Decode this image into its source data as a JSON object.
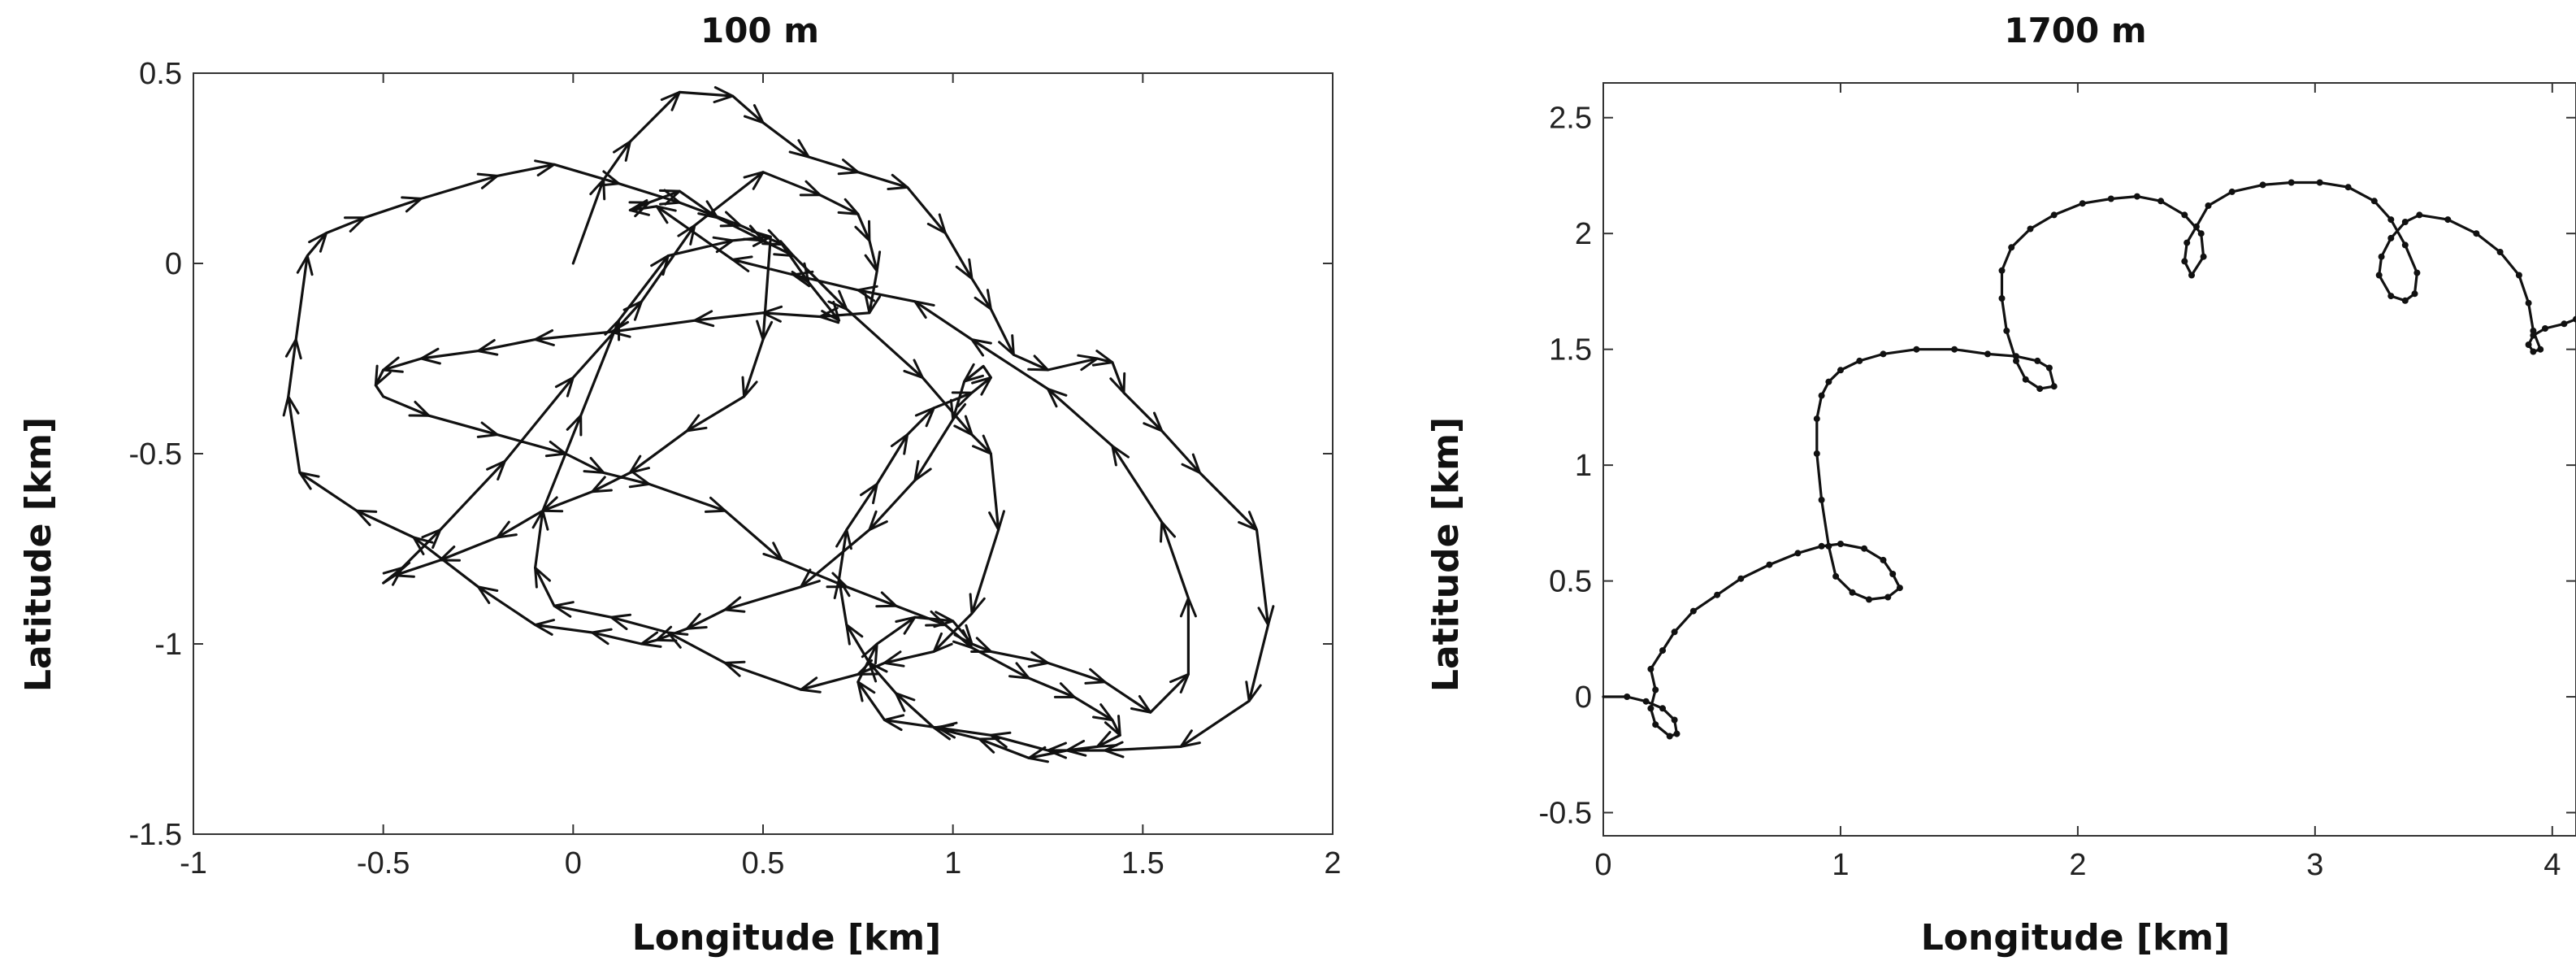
{
  "charts": [
    {
      "title": "100 m",
      "xlabel": "Longitude [km]",
      "ylabel": "Latitude [km]",
      "xticks": [
        "-1",
        "-0.5",
        "0",
        "0.5",
        "1",
        "1.5",
        "2"
      ],
      "yticks": [
        "0.5",
        "0",
        "-0.5",
        "-1",
        "-1.5"
      ]
    },
    {
      "title": "1700 m",
      "xlabel": "Longitude [km]",
      "ylabel": "Latitude [km]",
      "xticks": [
        "0",
        "1",
        "2",
        "3",
        "4"
      ],
      "yticks": [
        "2.5",
        "2",
        "1.5",
        "1",
        "0.5",
        "0",
        "-0.5"
      ]
    }
  ],
  "chart_data": [
    {
      "type": "line",
      "title": "100 m",
      "xlabel": "Longitude [km]",
      "ylabel": "Latitude [km]",
      "xlim": [
        -1,
        2
      ],
      "ylim": [
        -1.5,
        0.5
      ],
      "marker": "arrow",
      "series": [
        {
          "x": [
            0,
            0.08,
            0.15,
            0.28,
            0.42,
            0.5,
            0.62,
            0.75,
            0.88,
            0.98,
            1.05,
            1.1,
            1.16,
            1.25,
            1.38,
            1.42,
            1.45,
            1.55,
            1.65,
            1.8,
            1.83,
            1.78,
            1.6,
            1.4,
            1.25,
            1.1,
            0.96,
            0.82,
            0.75,
            0.8,
            0.9,
            1,
            1.05,
            1.1,
            1.25,
            1.4,
            1.52,
            1.62,
            1.62,
            1.55,
            1.42,
            1.25,
            1.05,
            0.9,
            0.75,
            0.58,
            0.42,
            0.22,
            0.15,
            0.2,
            0.28,
            0.38,
            0.5,
            0.58,
            0.72,
            0.92,
            1.05,
            1.1,
            1.12,
            1.05,
            0.95,
            0.82,
            0.75,
            0.6,
            0.4,
            0.25,
            0.1,
            -0.05,
            -0.1,
            -0.08,
            0.02,
            0.12,
            0.25,
            0.42,
            0.52,
            0.5,
            0.45,
            0.3,
            0.15,
            0.05,
            -0.08,
            -0.2,
            -0.35,
            -0.47,
            -0.5,
            -0.45,
            -0.35,
            -0.18,
            0,
            0.18,
            0.32,
            0.5,
            0.65,
            0.75,
            0.78,
            0.8,
            0.78,
            0.65,
            0.5,
            0.32,
            0.1,
            -0.1,
            -0.25,
            -0.4,
            -0.5,
            -0.52,
            -0.5,
            -0.38,
            -0.2,
            -0.02,
            0.08,
            0.2,
            0.4,
            0.55,
            0.72,
            0.85,
            0.98,
            1.05,
            1.2,
            1.32,
            1.42,
            1.44,
            1.38,
            1.3,
            1.2,
            1.07,
            0.95,
            0.85,
            0.78,
            0.72,
            0.7,
            0.72,
            0.8,
            0.88,
            0.95,
            1.05,
            1.1,
            1.08,
            1.03,
            1,
            0.9,
            0.78,
            0.6,
            0.4,
            0.3,
            0.22,
            0.18,
            0.05,
            -0.1,
            -0.25,
            -0.42,
            -0.57,
            -0.72,
            -0.75,
            -0.73,
            -0.7,
            -0.65,
            -0.55,
            -0.4,
            -0.2,
            -0.05,
            0.12,
            0.28,
            0.44,
            0.55,
            0.62,
            0.7
          ],
          "y": [
            0,
            0.22,
            0.32,
            0.45,
            0.44,
            0.37,
            0.28,
            0.24,
            0.2,
            0.08,
            -0.04,
            -0.12,
            -0.24,
            -0.28,
            -0.25,
            -0.26,
            -0.34,
            -0.44,
            -0.55,
            -0.7,
            -0.95,
            -1.15,
            -1.27,
            -1.28,
            -1.28,
            -1.24,
            -1.22,
            -1.2,
            -1.1,
            -1.0,
            -0.93,
            -0.94,
            -1.0,
            -1.02,
            -1.05,
            -1.1,
            -1.18,
            -1.08,
            -0.88,
            -0.68,
            -0.48,
            -0.33,
            -0.2,
            -0.1,
            -0.07,
            -0.03,
            0.01,
            0.15,
            0.14,
            0.16,
            0.19,
            0.12,
            0.06,
            0.02,
            -0.12,
            -0.3,
            -0.45,
            -0.5,
            -0.7,
            -0.92,
            -1.02,
            -1.05,
            -1.08,
            -1.12,
            -1.05,
            -0.97,
            -0.93,
            -0.9,
            -0.8,
            -0.65,
            -0.4,
            -0.15,
            0.02,
            0.06,
            0.07,
            -0.2,
            -0.35,
            -0.44,
            -0.55,
            -0.6,
            -0.65,
            -0.72,
            -0.78,
            -0.82,
            -0.84,
            -0.8,
            -0.7,
            -0.52,
            -0.3,
            -0.1,
            0.1,
            0.24,
            0.18,
            0.13,
            0.06,
            -0.02,
            -0.13,
            -0.14,
            -0.13,
            -0.15,
            -0.18,
            -0.2,
            -0.23,
            -0.25,
            -0.28,
            -0.32,
            -0.35,
            -0.4,
            -0.45,
            -0.5,
            -0.55,
            -0.58,
            -0.65,
            -0.78,
            -0.85,
            -0.9,
            -0.95,
            -1.01,
            -1.09,
            -1.14,
            -1.2,
            -1.24,
            -1.27,
            -1.28,
            -1.3,
            -1.25,
            -1.22,
            -1.13,
            -1.05,
            -0.95,
            -0.83,
            -0.7,
            -0.58,
            -0.45,
            -0.38,
            -0.34,
            -0.3,
            -0.27,
            -0.31,
            -0.41,
            -0.57,
            -0.7,
            -0.85,
            -0.91,
            -0.96,
            -0.99,
            -1.0,
            -0.97,
            -0.95,
            -0.85,
            -0.72,
            -0.65,
            -0.55,
            -0.35,
            -0.2,
            0.02,
            0.08,
            0.12,
            0.17,
            0.23,
            0.26,
            0.21,
            0.16,
            0.1,
            0.05,
            -0.05,
            -0.15
          ]
        }
      ]
    },
    {
      "type": "line",
      "title": "1700 m",
      "xlabel": "Longitude [km]",
      "ylabel": "Latitude [km]",
      "xlim": [
        0,
        4.1
      ],
      "ylim": [
        -0.6,
        2.65
      ],
      "marker": "dot",
      "series": [
        {
          "x": [
            0,
            0.1,
            0.18,
            0.25,
            0.3,
            0.31,
            0.28,
            0.22,
            0.2,
            0.22,
            0.2,
            0.25,
            0.3,
            0.38,
            0.48,
            0.58,
            0.7,
            0.82,
            0.92,
            1.0,
            1.1,
            1.18,
            1.22,
            1.25,
            1.2,
            1.12,
            1.05,
            0.98,
            0.95,
            0.92,
            0.9,
            0.9,
            0.92,
            0.95,
            1.0,
            1.08,
            1.18,
            1.32,
            1.48,
            1.62,
            1.74,
            1.83,
            1.88,
            1.9,
            1.84,
            1.78,
            1.74,
            1.7,
            1.68,
            1.68,
            1.72,
            1.8,
            1.9,
            2.02,
            2.14,
            2.25,
            2.35,
            2.45,
            2.52,
            2.53,
            2.48,
            2.45,
            2.46,
            2.5,
            2.55,
            2.65,
            2.78,
            2.9,
            3.02,
            3.14,
            3.25,
            3.32,
            3.38,
            3.43,
            3.42,
            3.38,
            3.32,
            3.27,
            3.28,
            3.32,
            3.38,
            3.44,
            3.56,
            3.68,
            3.78,
            3.86,
            3.9,
            3.92,
            3.95,
            3.92,
            3.9,
            3.92,
            3.97,
            4.05,
            4.1
          ],
          "y": [
            0,
            0,
            -0.02,
            -0.05,
            -0.1,
            -0.16,
            -0.17,
            -0.12,
            -0.05,
            0.03,
            0.12,
            0.2,
            0.28,
            0.37,
            0.44,
            0.51,
            0.57,
            0.62,
            0.65,
            0.66,
            0.64,
            0.59,
            0.53,
            0.47,
            0.43,
            0.42,
            0.45,
            0.52,
            0.65,
            0.85,
            1.05,
            1.2,
            1.3,
            1.36,
            1.41,
            1.45,
            1.48,
            1.5,
            1.5,
            1.48,
            1.47,
            1.45,
            1.42,
            1.34,
            1.33,
            1.37,
            1.45,
            1.58,
            1.72,
            1.84,
            1.94,
            2.02,
            2.08,
            2.13,
            2.15,
            2.16,
            2.14,
            2.08,
            2.0,
            1.9,
            1.82,
            1.88,
            1.96,
            2.03,
            2.12,
            2.18,
            2.21,
            2.22,
            2.22,
            2.2,
            2.14,
            2.06,
            1.95,
            1.83,
            1.74,
            1.71,
            1.73,
            1.82,
            1.9,
            1.98,
            2.05,
            2.08,
            2.06,
            2.0,
            1.92,
            1.82,
            1.7,
            1.58,
            1.5,
            1.49,
            1.52,
            1.56,
            1.59,
            1.61,
            1.63
          ]
        }
      ]
    }
  ]
}
